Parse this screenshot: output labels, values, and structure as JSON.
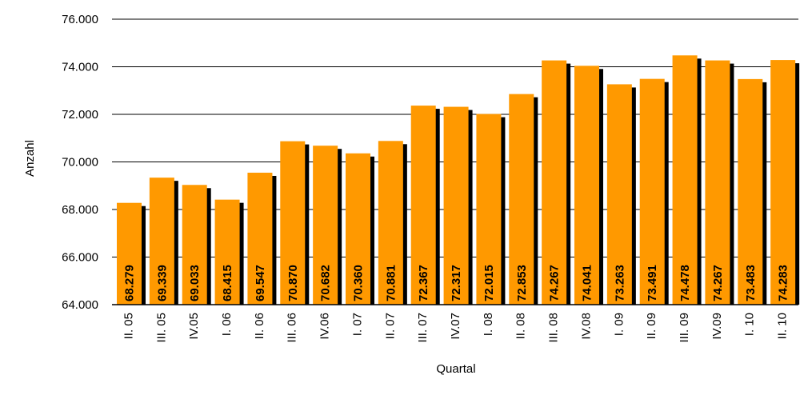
{
  "chart_data": {
    "type": "bar",
    "title": "",
    "xlabel": "Quartal",
    "ylabel": "Anzahl",
    "ylim": [
      64000,
      76000
    ],
    "yticks": [
      64000,
      66000,
      68000,
      70000,
      72000,
      74000,
      76000
    ],
    "ytick_labels": [
      "64.000",
      "66.000",
      "68.000",
      "70.000",
      "72.000",
      "74.000",
      "76.000"
    ],
    "grid": true,
    "legend": "none",
    "bar_color": "#FF9900",
    "shadow_color": "#000000",
    "categories": [
      "II. 05",
      "III. 05",
      "IV.05",
      "I. 06",
      "II. 06",
      "III. 06",
      "IV.06",
      "I. 07",
      "II. 07",
      "III. 07",
      "IV.07",
      "I. 08",
      "II. 08",
      "III. 08",
      "IV.08",
      "I. 09",
      "II. 09",
      "III. 09",
      "IV.09",
      "I. 10",
      "II. 10"
    ],
    "values": [
      68279,
      69339,
      69033,
      68415,
      69547,
      70870,
      70682,
      70360,
      70881,
      72367,
      72317,
      72015,
      72853,
      74267,
      74041,
      73263,
      73491,
      74478,
      74267,
      73483,
      74283
    ],
    "value_labels": [
      "68.279",
      "69.339",
      "69.033",
      "68.415",
      "69.547",
      "70.870",
      "70.682",
      "70.360",
      "70.881",
      "72.367",
      "72.317",
      "72.015",
      "72.853",
      "74.267",
      "74.041",
      "73.263",
      "73.491",
      "74.478",
      "74.267",
      "73.483",
      "74.283"
    ]
  }
}
